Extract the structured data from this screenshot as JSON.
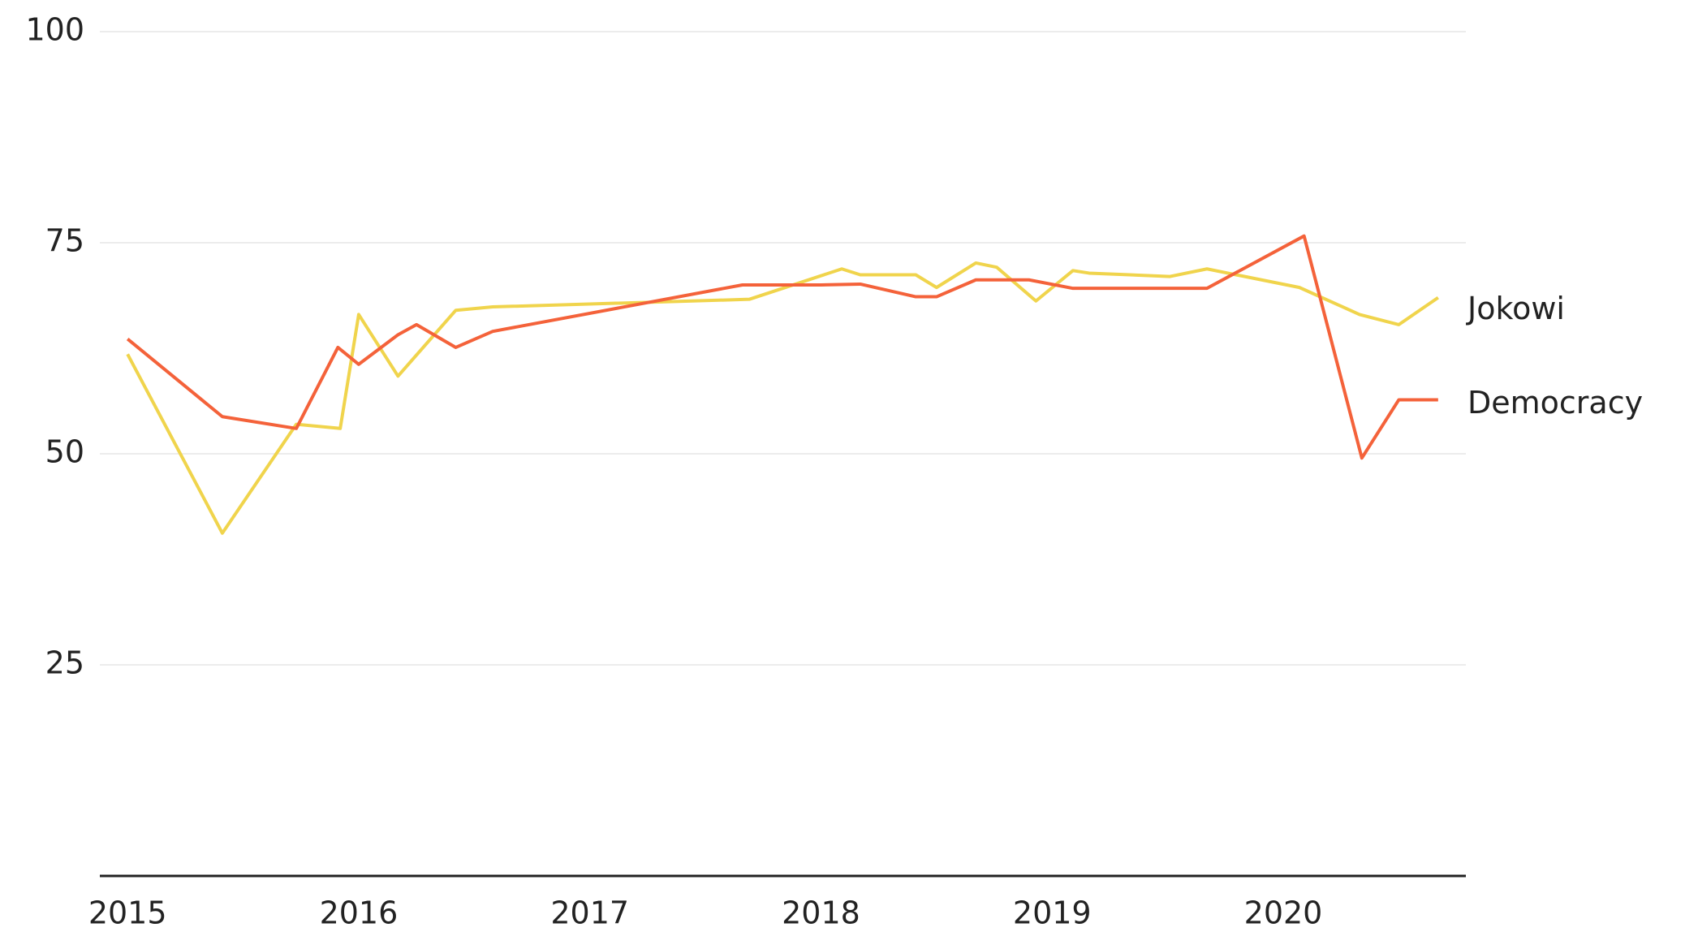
{
  "chart_data": {
    "type": "line",
    "xlim": [
      2014.88,
      2020.79
    ],
    "xticks": [
      2015,
      2016,
      2017,
      2018,
      2019,
      2020
    ],
    "ylim": [
      0,
      100
    ],
    "yticks": [
      25,
      50,
      75,
      100
    ],
    "grid": true,
    "series": [
      {
        "name": "Jokowi",
        "color": "#f0d44c",
        "x": [
          2015.0,
          2015.41,
          2015.73,
          2015.92,
          2016.0,
          2016.17,
          2016.42,
          2016.58,
          2017.69,
          2018.09,
          2018.17,
          2018.41,
          2018.5,
          2018.67,
          2018.76,
          2018.93,
          2019.09,
          2019.16,
          2019.51,
          2019.67,
          2019.76,
          2020.07,
          2020.33,
          2020.5,
          2020.67
        ],
        "values": [
          61.8,
          40.6,
          53.5,
          53,
          66.5,
          59.2,
          67,
          67.4,
          68.3,
          71.9,
          71.2,
          71.2,
          69.7,
          72.6,
          72.1,
          68.1,
          71.7,
          71.4,
          71,
          71.9,
          71.4,
          69.7,
          66.5,
          65.3,
          68.5
        ]
      },
      {
        "name": "Democracy",
        "color": "#f4623a",
        "x": [
          2015.0,
          2015.41,
          2015.73,
          2015.91,
          2016.0,
          2016.17,
          2016.25,
          2016.42,
          2016.58,
          2017.66,
          2018.0,
          2018.17,
          2018.41,
          2018.5,
          2018.67,
          2018.9,
          2019.09,
          2019.67,
          2020.09,
          2020.34,
          2020.5,
          2020.67
        ],
        "values": [
          63.6,
          54.4,
          53,
          62.6,
          60.6,
          64.1,
          65.3,
          62.6,
          64.5,
          70,
          70,
          70.1,
          68.6,
          68.6,
          70.6,
          70.6,
          69.6,
          69.6,
          75.8,
          49.5,
          56.4,
          56.4
        ]
      }
    ]
  }
}
